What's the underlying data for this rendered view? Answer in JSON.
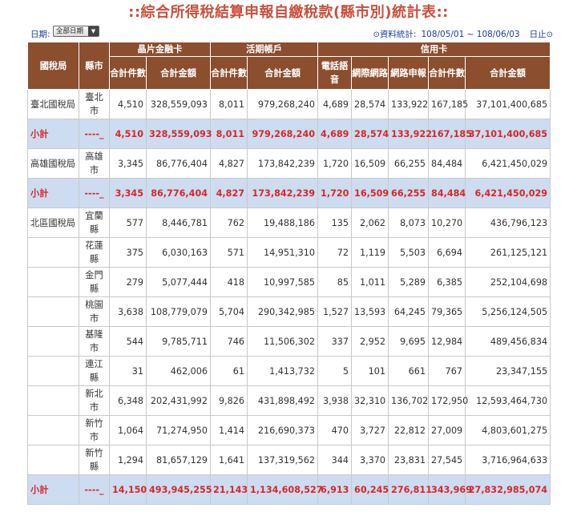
{
  "title": "::綜合所得稅結算申報自繳稅款(縣市別)統計表::",
  "filters": {
    "period_label": "日期:",
    "period_value": "全部日期",
    "stats_label": "資料統計:",
    "date_range": "108/05/01 ~ 108/06/03",
    "end_label": "日止"
  },
  "table": {
    "group_headers": {
      "chip_card": "晶片金融卡",
      "demand_account": "活期帳戶",
      "credit_card": "信用卡"
    },
    "headers": [
      "國稅局",
      "縣市",
      "合計件數",
      "合計金額",
      "合計件數",
      "合計金額",
      "電話語音",
      "網際網路",
      "網路申報",
      "合計件數",
      "合計金額"
    ],
    "rows": [
      {
        "type": "data",
        "bureau": "臺北國稅局",
        "city": "臺北市",
        "values": [
          "4,510",
          "328,559,093",
          "8,011",
          "979,268,240",
          "4,689",
          "28,574",
          "133,922",
          "167,185",
          "37,101,400,685"
        ]
      },
      {
        "type": "subtotal",
        "bureau": "小計",
        "city": "----_",
        "values": [
          "4,510",
          "328,559,093",
          "8,011",
          "979,268,240",
          "4,689",
          "28,574",
          "133,922",
          "167,185",
          "37,101,400,685"
        ]
      },
      {
        "type": "data",
        "bureau": "高雄國稅局",
        "city": "高雄市",
        "values": [
          "3,345",
          "86,776,404",
          "4,827",
          "173,842,239",
          "1,720",
          "16,509",
          "66,255",
          "84,484",
          "6,421,450,029"
        ]
      },
      {
        "type": "subtotal",
        "bureau": "小計",
        "city": "----_",
        "values": [
          "3,345",
          "86,776,404",
          "4,827",
          "173,842,239",
          "1,720",
          "16,509",
          "66,255",
          "84,484",
          "6,421,450,029"
        ]
      },
      {
        "type": "data",
        "bureau": "北區國稅局",
        "city": "宜蘭縣",
        "values": [
          "577",
          "8,446,781",
          "762",
          "19,488,186",
          "135",
          "2,062",
          "8,073",
          "10,270",
          "436,796,123"
        ]
      },
      {
        "type": "data",
        "bureau": "",
        "city": "花蓮縣",
        "values": [
          "375",
          "6,030,163",
          "571",
          "14,951,310",
          "72",
          "1,119",
          "5,503",
          "6,694",
          "261,125,121"
        ]
      },
      {
        "type": "data",
        "bureau": "",
        "city": "金門縣",
        "values": [
          "279",
          "5,077,444",
          "418",
          "10,997,585",
          "85",
          "1,011",
          "5,289",
          "6,385",
          "252,104,698"
        ]
      },
      {
        "type": "data",
        "bureau": "",
        "city": "桃園市",
        "values": [
          "3,638",
          "108,779,079",
          "5,704",
          "290,342,985",
          "1,527",
          "13,593",
          "64,245",
          "79,365",
          "5,256,124,505"
        ]
      },
      {
        "type": "data",
        "bureau": "",
        "city": "基隆市",
        "values": [
          "544",
          "9,785,711",
          "746",
          "11,506,302",
          "337",
          "2,952",
          "9,695",
          "12,984",
          "489,456,834"
        ]
      },
      {
        "type": "data",
        "bureau": "",
        "city": "連江縣",
        "values": [
          "31",
          "462,006",
          "61",
          "1,413,732",
          "5",
          "101",
          "661",
          "767",
          "23,347,155"
        ]
      },
      {
        "type": "data",
        "bureau": "",
        "city": "新北市",
        "values": [
          "6,348",
          "202,431,992",
          "9,826",
          "431,898,492",
          "3,938",
          "32,310",
          "136,702",
          "172,950",
          "12,593,464,730"
        ]
      },
      {
        "type": "data",
        "bureau": "",
        "city": "新竹市",
        "values": [
          "1,064",
          "71,274,950",
          "1,414",
          "216,690,373",
          "470",
          "3,727",
          "22,812",
          "27,009",
          "4,803,601,275"
        ]
      },
      {
        "type": "data",
        "bureau": "",
        "city": "新竹縣",
        "values": [
          "1,294",
          "81,657,129",
          "1,641",
          "137,319,562",
          "344",
          "3,370",
          "23,831",
          "27,545",
          "3,716,964,633"
        ]
      },
      {
        "type": "subtotal",
        "bureau": "小計",
        "city": "----_",
        "values": [
          "14,150",
          "493,945,255",
          "21,143",
          "1,134,608,527",
          "6,913",
          "60,245",
          "276,811",
          "343,969",
          "27,832,985,074"
        ]
      }
    ]
  },
  "colors": {
    "header_bg": "#8b4e2e",
    "subtotal_bg": "#cddcf0",
    "subtotal_text": "#d62828",
    "title": "#c8503c",
    "link": "#1a3aa8"
  }
}
